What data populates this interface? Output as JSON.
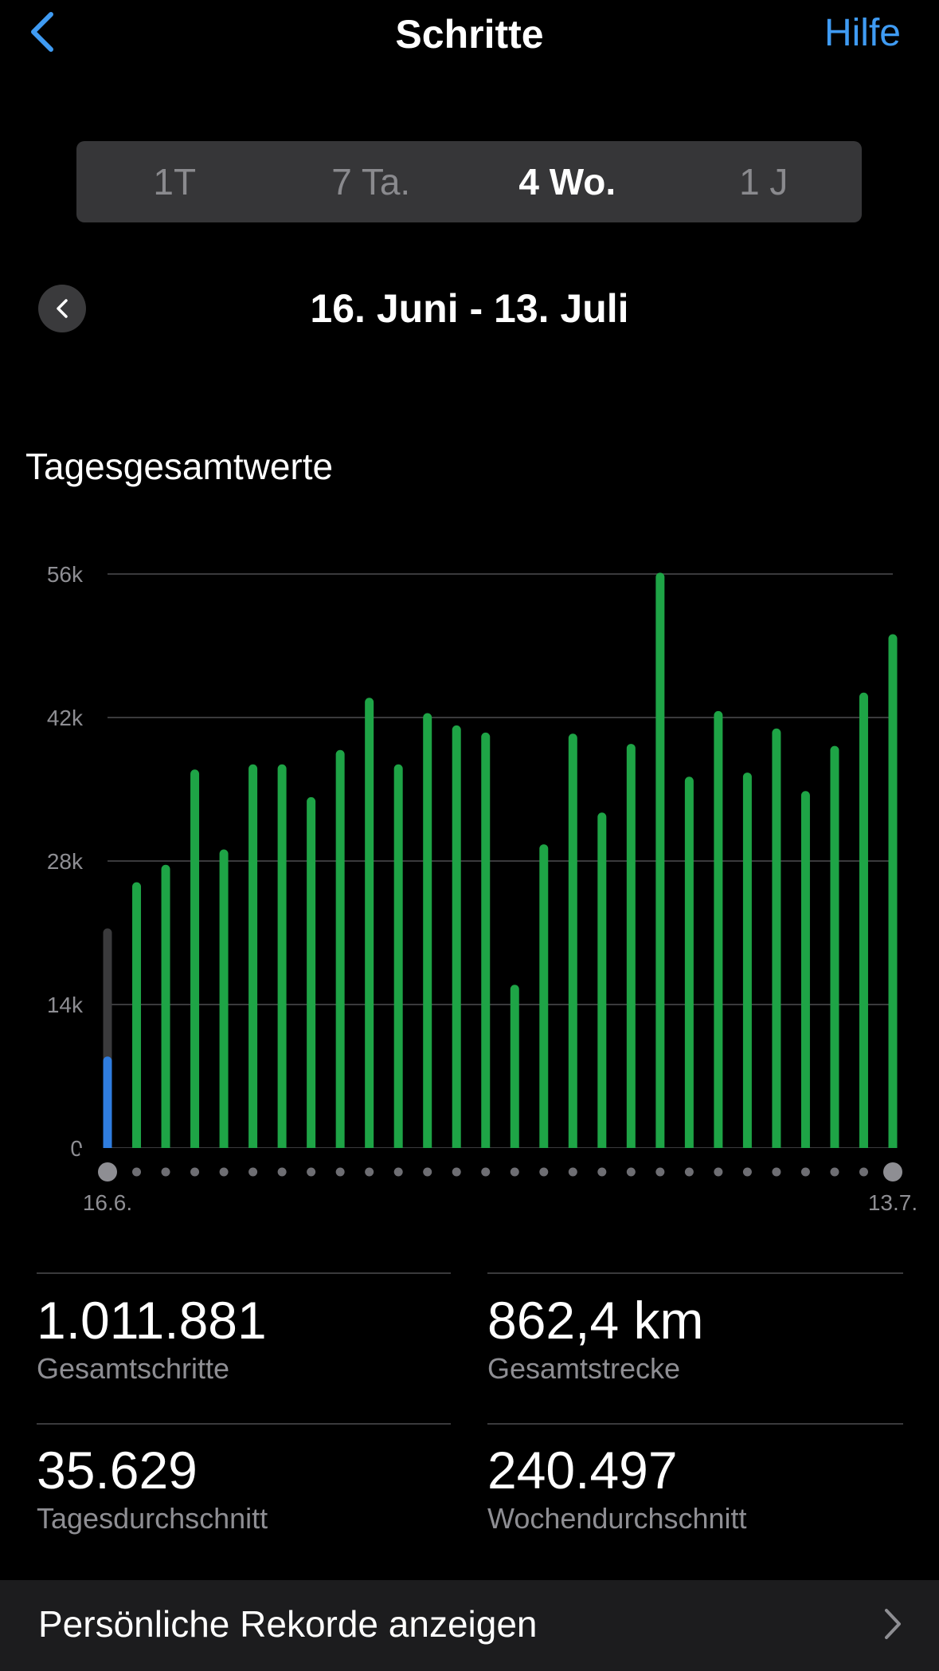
{
  "header": {
    "title": "Schritte",
    "help_label": "Hilfe"
  },
  "segments": [
    {
      "label": "1T",
      "active": false
    },
    {
      "label": "7 Ta.",
      "active": false
    },
    {
      "label": "4 Wo.",
      "active": true
    },
    {
      "label": "1 J",
      "active": false
    }
  ],
  "date_range": "16. Juni - 13. Juli",
  "chart_heading": "Tagesgesamtwerte",
  "chart_data": {
    "type": "bar",
    "title": "Tagesgesamtwerte",
    "xlabel": "",
    "ylabel": "",
    "ylim": [
      0,
      56000
    ],
    "y_ticks": [
      0,
      14000,
      28000,
      42000,
      56000
    ],
    "y_tick_labels": [
      "0",
      "14k",
      "28k",
      "42k",
      "56k"
    ],
    "x_tick_labels": [
      "16.6.",
      "13.7."
    ],
    "grid": true,
    "values": [
      8500,
      25500,
      27200,
      36500,
      28700,
      37000,
      37000,
      33800,
      38400,
      43500,
      37000,
      42000,
      40800,
      40100,
      15500,
      29200,
      40000,
      32300,
      39000,
      55700,
      35800,
      42200,
      36200,
      40500,
      34400,
      38800,
      44000,
      49700
    ],
    "goal_first_day": 21000,
    "colors": {
      "bars": "#1ea446",
      "current_day": "#2f7de0",
      "goal_track": "#3a3a3c"
    }
  },
  "stats": [
    {
      "value": "1.011.881",
      "label": "Gesamtschritte"
    },
    {
      "value": "862,4 km",
      "label": "Gesamtstrecke"
    },
    {
      "value": "35.629",
      "label": "Tagesdurchschnitt"
    },
    {
      "value": "240.497",
      "label": "Wochendurchschnitt"
    }
  ],
  "records_label": "Persönliche Rekorde anzeigen",
  "colors": {
    "accent": "#3f9bf3",
    "background": "#000000"
  }
}
